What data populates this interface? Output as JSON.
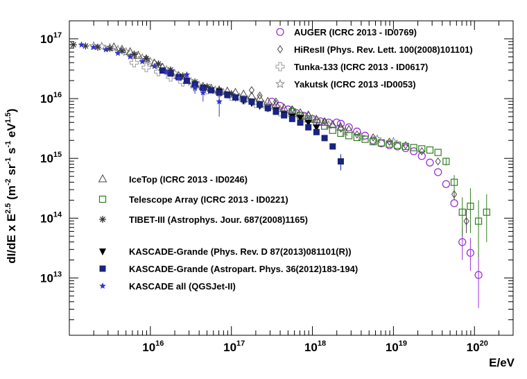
{
  "chart_data": {
    "type": "scatter",
    "xlabel": "E/eV",
    "ylabel": "dI/dE x E^2.5 (m^-2 sr^-1 s^-1 eV^1.5)",
    "ylabel_parts": {
      "a": "dI/dE x E",
      "a_sup": "2.5",
      "b": " (m",
      "b_sup": "-2",
      "c": " sr",
      "c_sup": "-1",
      "d": " s",
      "d_sup": "-1",
      "e": " eV",
      "e_sup": "1.5",
      "f": ")"
    },
    "x_scale": "log",
    "y_scale": "log",
    "xlim": [
      1000000000000000.0,
      3e+20
    ],
    "ylim": [
      1100000000000.0,
      2e+17
    ],
    "x_ticks": [
      {
        "base": "10",
        "exp": "16"
      },
      {
        "base": "10",
        "exp": "17"
      },
      {
        "base": "10",
        "exp": "18"
      },
      {
        "base": "10",
        "exp": "19"
      },
      {
        "base": "10",
        "exp": "20"
      }
    ],
    "y_ticks": [
      {
        "base": "10",
        "exp": "13"
      },
      {
        "base": "10",
        "exp": "14"
      },
      {
        "base": "10",
        "exp": "15"
      },
      {
        "base": "10",
        "exp": "16"
      },
      {
        "base": "10",
        "exp": "17"
      }
    ],
    "legend_position": "top-right and left-middle",
    "series": [
      {
        "name": "AUGER (ICRC 2013 - ID0769)",
        "marker": "open-circle",
        "color": "#9b30d9",
        "group": "top",
        "points": [
          {
            "lx": 18.35,
            "ly": 15.58
          },
          {
            "lx": 18.45,
            "ly": 15.52
          },
          {
            "lx": 18.55,
            "ly": 15.45
          },
          {
            "lx": 18.65,
            "ly": 15.38
          },
          {
            "lx": 18.75,
            "ly": 15.3
          },
          {
            "lx": 18.85,
            "ly": 15.25
          },
          {
            "lx": 18.95,
            "ly": 15.22
          },
          {
            "lx": 19.05,
            "ly": 15.2
          },
          {
            "lx": 19.15,
            "ly": 15.17
          },
          {
            "lx": 19.25,
            "ly": 15.12
          },
          {
            "lx": 19.35,
            "ly": 15.04
          },
          {
            "lx": 19.45,
            "ly": 14.93
          },
          {
            "lx": 19.55,
            "ly": 14.77
          },
          {
            "lx": 19.65,
            "ly": 14.57
          },
          {
            "lx": 19.75,
            "ly": 14.25
          },
          {
            "lx": 19.85,
            "ly": 13.6,
            "eu": 0.25,
            "ed": 0.3
          },
          {
            "lx": 19.95,
            "ly": 13.42,
            "eu": 0.25,
            "ed": 0.3
          },
          {
            "lx": 20.05,
            "ly": 13.05,
            "eu": 0.35,
            "ed": 0.55
          },
          {
            "lx": 17.5,
            "ly": 15.95
          },
          {
            "lx": 17.6,
            "ly": 15.88
          },
          {
            "lx": 17.7,
            "ly": 15.82
          },
          {
            "lx": 17.8,
            "ly": 15.76
          },
          {
            "lx": 17.9,
            "ly": 15.71
          },
          {
            "lx": 18.0,
            "ly": 15.66
          },
          {
            "lx": 18.1,
            "ly": 15.62
          },
          {
            "lx": 18.2,
            "ly": 15.6
          },
          {
            "lx": 18.3,
            "ly": 15.6
          }
        ]
      },
      {
        "name": "HiResII (Phys. Rev. Lett. 100(2008)101101)",
        "marker": "open-diamond",
        "color": "#444444",
        "group": "top",
        "points": [
          {
            "lx": 17.25,
            "ly": 16.14
          },
          {
            "lx": 17.35,
            "ly": 16.05
          },
          {
            "lx": 17.55,
            "ly": 15.95
          },
          {
            "lx": 17.75,
            "ly": 15.82
          },
          {
            "lx": 17.95,
            "ly": 15.72
          },
          {
            "lx": 18.15,
            "ly": 15.62
          },
          {
            "lx": 18.35,
            "ly": 15.5
          },
          {
            "lx": 18.55,
            "ly": 15.4
          },
          {
            "lx": 18.75,
            "ly": 15.35
          },
          {
            "lx": 18.95,
            "ly": 15.28
          },
          {
            "lx": 19.15,
            "ly": 15.22
          },
          {
            "lx": 19.35,
            "ly": 15.12
          },
          {
            "lx": 19.55,
            "ly": 14.95
          },
          {
            "lx": 19.75,
            "ly": 14.4,
            "eu": 0.1,
            "ed": 0.1
          },
          {
            "lx": 19.9,
            "ly": 13.95,
            "eu": 0.2,
            "ed": 0.2
          }
        ]
      },
      {
        "name": "Tunka-133 (ICRC 2013 - ID0617)",
        "marker": "open-cross",
        "color": "#999999",
        "group": "top",
        "points": [
          {
            "lx": 15.8,
            "ly": 16.6
          },
          {
            "lx": 15.95,
            "ly": 16.52
          },
          {
            "lx": 16.1,
            "ly": 16.45
          },
          {
            "lx": 16.25,
            "ly": 16.36
          },
          {
            "lx": 16.4,
            "ly": 16.28
          },
          {
            "lx": 16.55,
            "ly": 16.2
          },
          {
            "lx": 16.7,
            "ly": 16.15
          },
          {
            "lx": 16.85,
            "ly": 16.1
          },
          {
            "lx": 17.0,
            "ly": 16.04
          },
          {
            "lx": 17.15,
            "ly": 15.98
          },
          {
            "lx": 17.3,
            "ly": 15.92
          },
          {
            "lx": 17.45,
            "ly": 15.86
          },
          {
            "lx": 17.6,
            "ly": 15.78
          },
          {
            "lx": 17.75,
            "ly": 15.72
          },
          {
            "lx": 17.9,
            "ly": 15.68
          },
          {
            "lx": 18.05,
            "ly": 15.62
          }
        ]
      },
      {
        "name": "Yakutsk (ICRC 2013 -ID0053)",
        "marker": "open-star",
        "color": "#888888",
        "group": "top",
        "points": [
          {
            "lx": 15.3,
            "ly": 16.88
          },
          {
            "lx": 15.4,
            "ly": 16.87
          },
          {
            "lx": 15.5,
            "ly": 16.85
          },
          {
            "lx": 15.6,
            "ly": 16.82
          },
          {
            "lx": 15.7,
            "ly": 16.78
          },
          {
            "lx": 15.8,
            "ly": 16.73
          },
          {
            "lx": 15.9,
            "ly": 16.68
          },
          {
            "lx": 16.0,
            "ly": 16.62
          },
          {
            "lx": 16.1,
            "ly": 16.56
          },
          {
            "lx": 16.2,
            "ly": 16.48
          },
          {
            "lx": 16.3,
            "ly": 16.42
          },
          {
            "lx": 16.4,
            "ly": 16.36
          },
          {
            "lx": 16.5,
            "ly": 16.28
          },
          {
            "lx": 16.6,
            "ly": 16.22
          },
          {
            "lx": 16.7,
            "ly": 16.18
          },
          {
            "lx": 16.8,
            "ly": 16.14
          },
          {
            "lx": 16.9,
            "ly": 16.1
          },
          {
            "lx": 17.0,
            "ly": 16.06
          },
          {
            "lx": 17.1,
            "ly": 16.02
          },
          {
            "lx": 17.2,
            "ly": 15.98
          },
          {
            "lx": 17.3,
            "ly": 15.94
          },
          {
            "lx": 17.4,
            "ly": 15.9
          },
          {
            "lx": 17.5,
            "ly": 15.86
          },
          {
            "lx": 17.6,
            "ly": 15.82
          },
          {
            "lx": 17.8,
            "ly": 15.74
          },
          {
            "lx": 18.0,
            "ly": 15.66
          },
          {
            "lx": 18.2,
            "ly": 15.56
          },
          {
            "lx": 18.4,
            "ly": 15.44
          },
          {
            "lx": 18.6,
            "ly": 15.36
          },
          {
            "lx": 18.8,
            "ly": 15.32
          },
          {
            "lx": 19.0,
            "ly": 15.28
          }
        ]
      },
      {
        "name": "IceTop (ICRC 2013 - ID0246)",
        "marker": "open-triangle",
        "color": "#444444",
        "group": "left",
        "points": [
          {
            "lx": 15.55,
            "ly": 16.86
          },
          {
            "lx": 15.65,
            "ly": 16.82
          },
          {
            "lx": 15.75,
            "ly": 16.78
          },
          {
            "lx": 15.85,
            "ly": 16.72
          },
          {
            "lx": 15.95,
            "ly": 16.66
          },
          {
            "lx": 16.05,
            "ly": 16.59
          },
          {
            "lx": 16.15,
            "ly": 16.52
          },
          {
            "lx": 16.25,
            "ly": 16.45
          },
          {
            "lx": 16.35,
            "ly": 16.38
          },
          {
            "lx": 16.45,
            "ly": 16.3
          },
          {
            "lx": 16.55,
            "ly": 16.24
          },
          {
            "lx": 16.65,
            "ly": 16.2
          },
          {
            "lx": 16.75,
            "ly": 16.17
          },
          {
            "lx": 16.85,
            "ly": 16.14
          },
          {
            "lx": 16.95,
            "ly": 16.12
          },
          {
            "lx": 17.05,
            "ly": 16.1
          },
          {
            "lx": 17.15,
            "ly": 16.07
          },
          {
            "lx": 17.25,
            "ly": 16.04
          },
          {
            "lx": 17.35,
            "ly": 16.0
          },
          {
            "lx": 17.45,
            "ly": 15.95
          },
          {
            "lx": 17.55,
            "ly": 15.9
          },
          {
            "lx": 17.65,
            "ly": 15.84
          },
          {
            "lx": 17.75,
            "ly": 15.8
          },
          {
            "lx": 17.85,
            "ly": 15.76
          },
          {
            "lx": 17.95,
            "ly": 15.72
          },
          {
            "lx": 18.05,
            "ly": 15.65
          },
          {
            "lx": 18.15,
            "ly": 15.6
          },
          {
            "lx": 18.25,
            "ly": 15.56
          },
          {
            "lx": 18.35,
            "ly": 15.52
          },
          {
            "lx": 18.45,
            "ly": 15.48
          }
        ]
      },
      {
        "name": "Telescope Array (ICRC 2013 - ID0221)",
        "marker": "open-square",
        "color": "#2e7d1e",
        "group": "left",
        "points": [
          {
            "lx": 17.75,
            "ly": 15.78
          },
          {
            "lx": 17.85,
            "ly": 15.72
          },
          {
            "lx": 17.95,
            "ly": 15.66
          },
          {
            "lx": 18.05,
            "ly": 15.6
          },
          {
            "lx": 18.15,
            "ly": 15.54
          },
          {
            "lx": 18.25,
            "ly": 15.47
          },
          {
            "lx": 18.35,
            "ly": 15.42
          },
          {
            "lx": 18.45,
            "ly": 15.38
          },
          {
            "lx": 18.55,
            "ly": 15.35
          },
          {
            "lx": 18.65,
            "ly": 15.32
          },
          {
            "lx": 18.75,
            "ly": 15.28
          },
          {
            "lx": 18.85,
            "ly": 15.26
          },
          {
            "lx": 18.95,
            "ly": 15.24
          },
          {
            "lx": 19.05,
            "ly": 15.22
          },
          {
            "lx": 19.15,
            "ly": 15.2
          },
          {
            "lx": 19.25,
            "ly": 15.18
          },
          {
            "lx": 19.35,
            "ly": 15.16
          },
          {
            "lx": 19.45,
            "ly": 15.14
          },
          {
            "lx": 19.55,
            "ly": 15.1
          },
          {
            "lx": 19.65,
            "ly": 14.95,
            "eu": 0.06,
            "ed": 0.07
          },
          {
            "lx": 19.75,
            "ly": 14.6,
            "eu": 0.12,
            "ed": 0.18
          },
          {
            "lx": 19.85,
            "ly": 14.1,
            "eu": 0.25,
            "ed": 0.4
          },
          {
            "lx": 19.95,
            "ly": 14.2,
            "eu": 0.3,
            "ed": 0.45
          },
          {
            "lx": 20.05,
            "ly": 13.95,
            "eu": 0.35,
            "ed": 0.6
          },
          {
            "lx": 20.15,
            "ly": 14.1,
            "eu": 0.3,
            "ed": 0.5
          }
        ]
      },
      {
        "name": "TIBET-III (Astrophys. Jour. 687(2008)1165)",
        "marker": "asterisk",
        "color": "#333333",
        "group": "left",
        "points": [
          {
            "lx": 15.05,
            "ly": 16.9
          },
          {
            "lx": 15.2,
            "ly": 16.88
          },
          {
            "lx": 15.35,
            "ly": 16.86
          },
          {
            "lx": 15.5,
            "ly": 16.84
          },
          {
            "lx": 15.65,
            "ly": 16.8
          },
          {
            "lx": 15.8,
            "ly": 16.74
          },
          {
            "lx": 15.95,
            "ly": 16.67
          },
          {
            "lx": 16.1,
            "ly": 16.58
          },
          {
            "lx": 16.25,
            "ly": 16.48
          },
          {
            "lx": 16.4,
            "ly": 16.38
          },
          {
            "lx": 16.55,
            "ly": 16.28
          },
          {
            "lx": 16.7,
            "ly": 16.2
          },
          {
            "lx": 16.85,
            "ly": 16.14
          },
          {
            "lx": 17.0,
            "ly": 16.08
          }
        ]
      },
      {
        "name": "KASCADE-Grande (Phys. Rev. D 87(2013)081101(R))",
        "marker": "filled-triangle-down",
        "color": "#000000",
        "group": "left",
        "points": [
          {
            "lx": 16.85,
            "ly": 16.12
          },
          {
            "lx": 16.95,
            "ly": 16.07
          },
          {
            "lx": 17.05,
            "ly": 16.02
          },
          {
            "lx": 17.15,
            "ly": 15.97
          },
          {
            "lx": 17.25,
            "ly": 15.93
          },
          {
            "lx": 17.35,
            "ly": 15.88
          },
          {
            "lx": 17.45,
            "ly": 15.84
          },
          {
            "lx": 17.55,
            "ly": 15.8
          },
          {
            "lx": 17.65,
            "ly": 15.74
          },
          {
            "lx": 17.75,
            "ly": 15.7
          },
          {
            "lx": 17.85,
            "ly": 15.68
          },
          {
            "lx": 17.95,
            "ly": 15.6
          },
          {
            "lx": 18.05,
            "ly": 15.52,
            "eu": 0.08,
            "ed": 0.1
          }
        ]
      },
      {
        "name": "KASCADE-Grande (Astropart. Phys. 36(2012)183-194)",
        "marker": "filled-square",
        "color": "#1a237e",
        "group": "left",
        "points": [
          {
            "lx": 16.15,
            "ly": 16.47
          },
          {
            "lx": 16.25,
            "ly": 16.42
          },
          {
            "lx": 16.35,
            "ly": 16.36
          },
          {
            "lx": 16.45,
            "ly": 16.3
          },
          {
            "lx": 16.55,
            "ly": 16.24
          },
          {
            "lx": 16.65,
            "ly": 16.18
          },
          {
            "lx": 16.75,
            "ly": 16.14
          },
          {
            "lx": 16.85,
            "ly": 16.1
          },
          {
            "lx": 16.95,
            "ly": 16.06
          },
          {
            "lx": 17.05,
            "ly": 16.02
          },
          {
            "lx": 17.15,
            "ly": 15.99
          },
          {
            "lx": 17.25,
            "ly": 15.95
          },
          {
            "lx": 17.35,
            "ly": 15.9
          },
          {
            "lx": 17.45,
            "ly": 15.84
          },
          {
            "lx": 17.55,
            "ly": 15.78
          },
          {
            "lx": 17.65,
            "ly": 15.72
          },
          {
            "lx": 17.75,
            "ly": 15.66
          },
          {
            "lx": 17.85,
            "ly": 15.6
          },
          {
            "lx": 17.95,
            "ly": 15.52
          },
          {
            "lx": 18.05,
            "ly": 15.44
          },
          {
            "lx": 18.15,
            "ly": 15.34
          },
          {
            "lx": 18.25,
            "ly": 15.2
          },
          {
            "lx": 18.35,
            "ly": 14.95,
            "eu": 0.12,
            "ed": 0.15
          }
        ]
      },
      {
        "name": "KASCADE all (QGSJet-II)",
        "marker": "filled-star",
        "color": "#3434cf",
        "group": "left",
        "points": [
          {
            "lx": 15.15,
            "ly": 16.9
          },
          {
            "lx": 15.3,
            "ly": 16.86
          },
          {
            "lx": 15.45,
            "ly": 16.82
          },
          {
            "lx": 15.6,
            "ly": 16.76
          },
          {
            "lx": 15.75,
            "ly": 16.7
          },
          {
            "lx": 15.9,
            "ly": 16.62
          },
          {
            "lx": 16.05,
            "ly": 16.54
          },
          {
            "lx": 16.2,
            "ly": 16.44
          },
          {
            "lx": 16.35,
            "ly": 16.34
          },
          {
            "lx": 16.45,
            "ly": 16.4
          },
          {
            "lx": 16.55,
            "ly": 16.18,
            "eu": 0.08,
            "ed": 0.1
          },
          {
            "lx": 16.65,
            "ly": 16.1,
            "eu": 0.1,
            "ed": 0.15
          },
          {
            "lx": 16.85,
            "ly": 15.95,
            "eu": 0.15,
            "ed": 0.25
          }
        ]
      }
    ]
  }
}
